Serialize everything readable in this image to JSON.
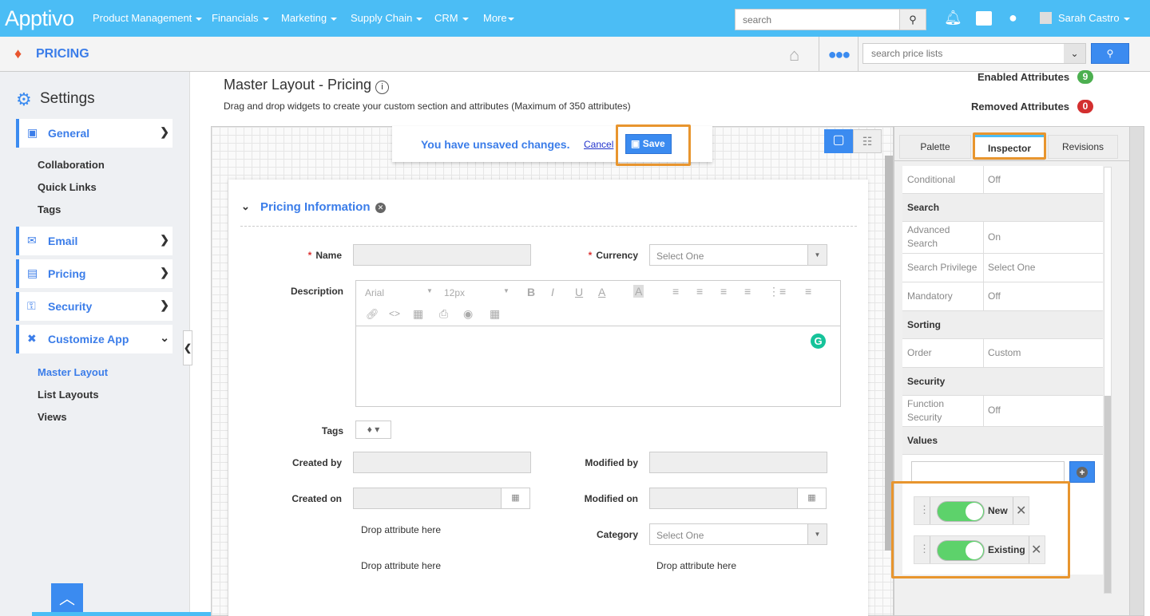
{
  "topbar": {
    "logo": "Apptivo",
    "nav": [
      {
        "label": "Product Management"
      },
      {
        "label": "Financials"
      },
      {
        "label": "Marketing"
      },
      {
        "label": "Supply Chain"
      },
      {
        "label": "CRM"
      },
      {
        "label": "More"
      }
    ],
    "search_placeholder": "search",
    "user_name": "Sarah Castro"
  },
  "app": {
    "title": "PRICING",
    "search_placeholder": "search price lists"
  },
  "sidebar": {
    "title": "Settings",
    "items": [
      {
        "label": "General"
      },
      {
        "label": "Email"
      },
      {
        "label": "Pricing"
      },
      {
        "label": "Security"
      },
      {
        "label": "Customize App"
      }
    ],
    "general_sub": [
      "Collaboration",
      "Quick Links",
      "Tags"
    ],
    "customize_sub": [
      "Master Layout",
      "List Layouts",
      "Views"
    ]
  },
  "page": {
    "title": "Master Layout - Pricing",
    "description": "Drag and drop widgets to create your custom section and attributes (Maximum of 350 attributes)",
    "enabled_label": "Enabled Attributes",
    "enabled_count": "9",
    "removed_label": "Removed Attributes",
    "removed_count": "0"
  },
  "banner": {
    "message": "You have unsaved changes.",
    "cancel": "Cancel",
    "save": "Save"
  },
  "form": {
    "section_title": "Pricing Information",
    "name_label": "Name",
    "currency_label": "Currency",
    "currency_value": "Select One",
    "description_label": "Description",
    "font": "Arial",
    "font_size": "12px",
    "tags_label": "Tags",
    "created_by_label": "Created by",
    "modified_by_label": "Modified by",
    "created_on_label": "Created on",
    "modified_on_label": "Modified on",
    "category_label": "Category",
    "category_value": "Select One",
    "drop_text": "Drop attribute here"
  },
  "panel": {
    "tabs": [
      "Palette",
      "Inspector",
      "Revisions"
    ],
    "active_tab": "Inspector",
    "rows": [
      {
        "k": "Conditional",
        "v": "Off"
      }
    ],
    "search_head": "Search",
    "search_rows": [
      {
        "k": "Advanced Search",
        "v": "On"
      },
      {
        "k": "Search Privilege",
        "v": "Select One"
      },
      {
        "k": "Mandatory",
        "v": "Off"
      }
    ],
    "sorting_head": "Sorting",
    "sorting_rows": [
      {
        "k": "Order",
        "v": "Custom"
      }
    ],
    "security_head": "Security",
    "security_rows": [
      {
        "k": "Function Security",
        "v": "Off"
      }
    ],
    "values_head": "Values",
    "values": [
      {
        "label": "New",
        "enabled": true
      },
      {
        "label": "Existing",
        "enabled": true
      }
    ]
  },
  "colors": {
    "topbar": "#4bbdf5",
    "accent": "#3b8bf0",
    "highlight": "#e8952e",
    "toggle_on": "#5dd26b",
    "badge_green": "#4caf50",
    "badge_red": "#d32f2f"
  }
}
